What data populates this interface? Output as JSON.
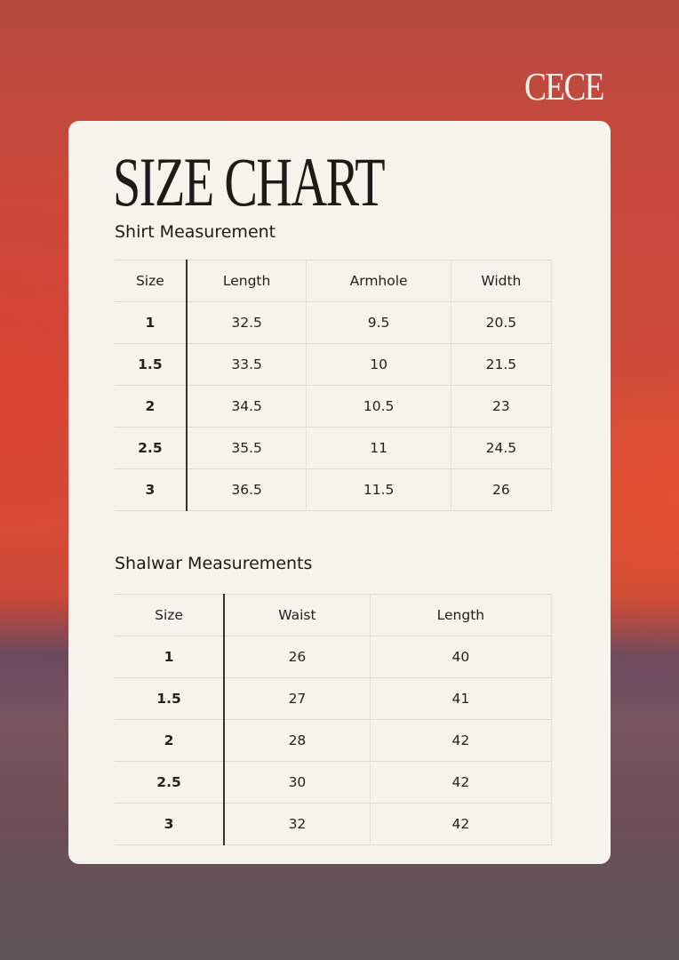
{
  "brand": "CECE",
  "title": "SIZE CHART",
  "shirt": {
    "heading": "Shirt Measurement",
    "columns": [
      "Size",
      "Length",
      "Armhole",
      "Width"
    ],
    "rows": [
      [
        "1",
        "32.5",
        "9.5",
        "20.5"
      ],
      [
        "1.5",
        "33.5",
        "10",
        "21.5"
      ],
      [
        "2",
        "34.5",
        "10.5",
        "23"
      ],
      [
        "2.5",
        "35.5",
        "11",
        "24.5"
      ],
      [
        "3",
        "36.5",
        "11.5",
        "26"
      ]
    ]
  },
  "shalwar": {
    "heading": "Shalwar Measurements",
    "columns": [
      "Size",
      "Waist",
      "Length"
    ],
    "rows": [
      [
        "1",
        "26",
        "40"
      ],
      [
        "1.5",
        "27",
        "41"
      ],
      [
        "2",
        "28",
        "42"
      ],
      [
        "2.5",
        "30",
        "42"
      ],
      [
        "3",
        "32",
        "42"
      ]
    ]
  }
}
